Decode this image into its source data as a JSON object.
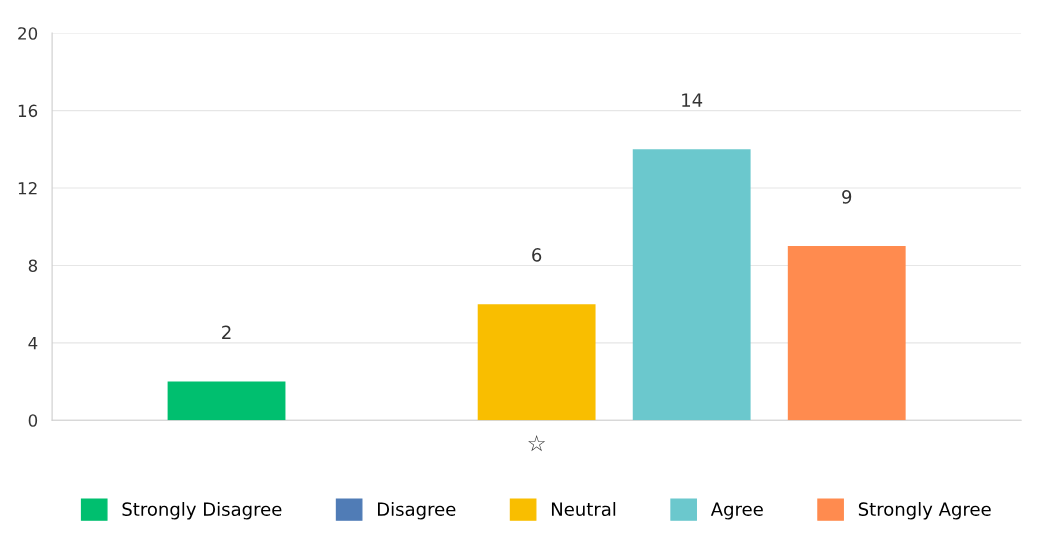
{
  "chart_data": {
    "type": "bar",
    "categories": [
      "☆"
    ],
    "series": [
      {
        "name": "Strongly Disagree",
        "color": "#00bf6f",
        "values": [
          2
        ],
        "value_labels": [
          "2"
        ]
      },
      {
        "name": "Disagree",
        "color": "#507cb6",
        "values": [
          0
        ],
        "value_labels": [
          null
        ]
      },
      {
        "name": "Neutral",
        "color": "#f9be00",
        "values": [
          6
        ],
        "value_labels": [
          "6"
        ]
      },
      {
        "name": "Agree",
        "color": "#6bc8cd",
        "values": [
          14
        ],
        "value_labels": [
          "14"
        ]
      },
      {
        "name": "Strongly Agree",
        "color": "#ff8b4f",
        "values": [
          9
        ],
        "value_labels": [
          "9"
        ]
      }
    ],
    "ylim": [
      0,
      20
    ],
    "yticks": [
      0,
      4,
      8,
      12,
      16,
      20
    ],
    "grid": "y",
    "legend": "bottom"
  }
}
